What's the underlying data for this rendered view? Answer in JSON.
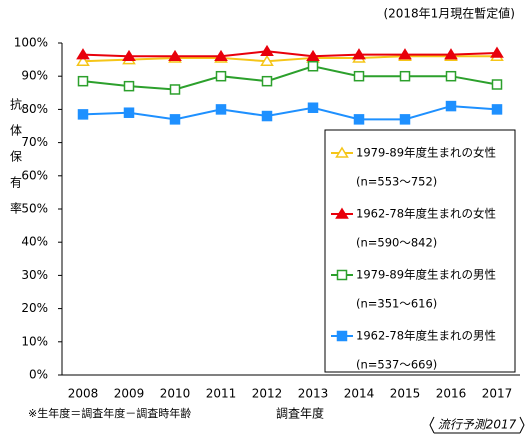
{
  "chart_data": {
    "type": "line",
    "note": "(2018年1月現在暫定値)",
    "y_label": "抗体保有率",
    "x_label": "調査年度",
    "footnote": "※生年度＝調査年度－調査時年齢",
    "source": "流行予測2017",
    "categories": [
      "2008",
      "2009",
      "2010",
      "2011",
      "2012",
      "2013",
      "2014",
      "2015",
      "2016",
      "2017"
    ],
    "ylim": [
      0,
      100
    ],
    "yticks": [
      {
        "value": 0,
        "label": "0%"
      },
      {
        "value": 10,
        "label": "10%"
      },
      {
        "value": 20,
        "label": "20%"
      },
      {
        "value": 30,
        "label": "30%"
      },
      {
        "value": 40,
        "label": "40%"
      },
      {
        "value": 50,
        "label": "50%"
      },
      {
        "value": 60,
        "label": "60%"
      },
      {
        "value": 70,
        "label": "70%"
      },
      {
        "value": 80,
        "label": "80%"
      },
      {
        "value": 90,
        "label": "90%"
      },
      {
        "value": 100,
        "label": "100%"
      }
    ],
    "grid": false,
    "series": [
      {
        "name": "1979-89年度生まれの女性",
        "n": "(n=553～752)",
        "color": "#f5c518",
        "marker": "triangle-open",
        "values": [
          94.5,
          95,
          95.5,
          95.5,
          94.5,
          95.5,
          95.5,
          96,
          96,
          96
        ]
      },
      {
        "name": "1962-78年度生まれの女性",
        "n": "(n=590～842)",
        "color": "#e8000b",
        "marker": "triangle",
        "values": [
          96.5,
          96,
          96,
          96,
          97.5,
          96,
          96.5,
          96.5,
          96.5,
          97
        ]
      },
      {
        "name": "1979-89年度生まれの男性",
        "n": "(n=351～616)",
        "color": "#2ca02c",
        "marker": "square-open",
        "values": [
          88.5,
          87,
          86,
          90,
          88.5,
          93,
          90,
          90,
          90,
          87.5
        ]
      },
      {
        "name": "1962-78年度生まれの男性",
        "n": "(n=537～669)",
        "color": "#1e90ff",
        "marker": "square",
        "values": [
          78.5,
          79,
          77,
          80,
          78,
          80.5,
          77,
          77,
          81,
          80
        ]
      }
    ]
  }
}
